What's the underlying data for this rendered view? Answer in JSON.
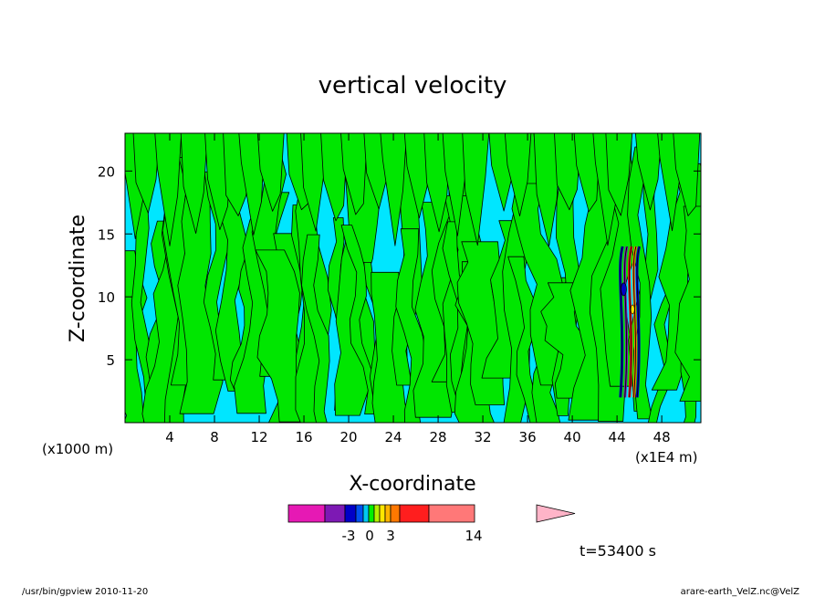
{
  "chart_data": {
    "type": "heatmap",
    "title": "vertical velocity",
    "xlabel": "X-coordinate",
    "ylabel": "Z-coordinate",
    "x_unit_left": "(x1000 m)",
    "x_unit_right": "(x1E4 m)",
    "xlim": [
      0,
      51.5
    ],
    "ylim": [
      0,
      23
    ],
    "x_ticks": [
      4,
      8,
      12,
      16,
      20,
      24,
      28,
      32,
      36,
      40,
      44,
      48
    ],
    "y_ticks": [
      5,
      10,
      15,
      20
    ],
    "grid": false,
    "colorbar": {
      "orientation": "horizontal",
      "extend": "max",
      "tick_labels": [
        "-3",
        "0",
        "3",
        "14"
      ],
      "tick_values": [
        -3,
        0,
        3,
        14
      ],
      "colors": [
        "#e619b4",
        "#7d19b4",
        "#0000c8",
        "#0050f0",
        "#00c8f0",
        "#00f000",
        "#b4f000",
        "#ffe600",
        "#ffb400",
        "#ff7800",
        "#ff1e1e",
        "#ff7878",
        "#ffb4c8"
      ]
    },
    "field_colors": {
      "negative_weak": "#00e6ff",
      "positive_weak": "#00e600",
      "strong": "#ff1e1e"
    },
    "time_label": "t=53400 s",
    "strong_updraft_region": {
      "x_from": 44,
      "x_to": 46,
      "z_from": 2,
      "z_to": 14
    }
  },
  "footer": {
    "left": "/usr/bin/gpview   2010-11-20",
    "right": "arare-earth_VelZ.nc@VelZ"
  }
}
